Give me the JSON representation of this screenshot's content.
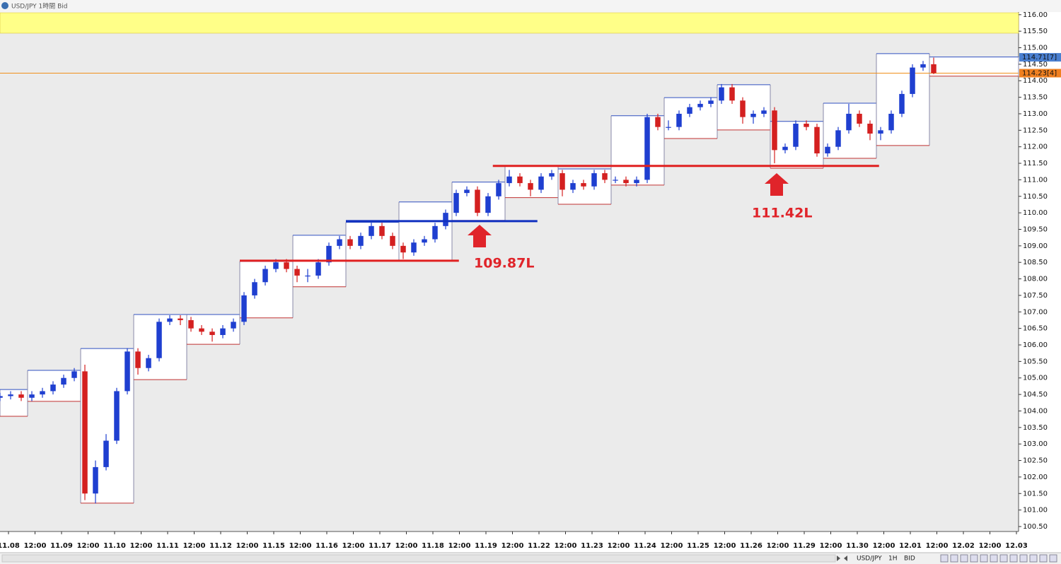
{
  "ui": {
    "title": "USD/JPY 1時間 Bid",
    "toolbar": [
      "USD/JPY",
      "1H",
      "BID"
    ]
  },
  "chart_data": {
    "type": "candlestick",
    "xlim": [
      -0.16,
      19.04
    ],
    "ylim": [
      100.35,
      116.06
    ],
    "xticks": [
      {
        "value": 0,
        "label": "11.08"
      },
      {
        "value": 0.5,
        "label": "12:00"
      },
      {
        "value": 1,
        "label": "11.09"
      },
      {
        "value": 1.5,
        "label": "12:00"
      },
      {
        "value": 2,
        "label": "11.10"
      },
      {
        "value": 2.5,
        "label": "12:00"
      },
      {
        "value": 3,
        "label": "11.11"
      },
      {
        "value": 3.5,
        "label": "12:00"
      },
      {
        "value": 4,
        "label": "11.12"
      },
      {
        "value": 4.5,
        "label": "12:00"
      },
      {
        "value": 5,
        "label": "11.15"
      },
      {
        "value": 5.5,
        "label": "12:00"
      },
      {
        "value": 6,
        "label": "11.16"
      },
      {
        "value": 6.5,
        "label": "12:00"
      },
      {
        "value": 7,
        "label": "11.17"
      },
      {
        "value": 7.5,
        "label": "12:00"
      },
      {
        "value": 8,
        "label": "11.18"
      },
      {
        "value": 8.5,
        "label": "12:00"
      },
      {
        "value": 9,
        "label": "11.19"
      },
      {
        "value": 9.5,
        "label": "12:00"
      },
      {
        "value": 10,
        "label": "11.22"
      },
      {
        "value": 10.5,
        "label": "12:00"
      },
      {
        "value": 11,
        "label": "11.23"
      },
      {
        "value": 11.5,
        "label": "12:00"
      },
      {
        "value": 12,
        "label": "11.24"
      },
      {
        "value": 12.5,
        "label": "12:00"
      },
      {
        "value": 13,
        "label": "11.25"
      },
      {
        "value": 13.5,
        "label": "12:00"
      },
      {
        "value": 14,
        "label": "11.26"
      },
      {
        "value": 14.5,
        "label": "12:00"
      },
      {
        "value": 15,
        "label": "11.29"
      },
      {
        "value": 15.5,
        "label": "12:00"
      },
      {
        "value": 16,
        "label": "11.30"
      },
      {
        "value": 16.5,
        "label": "12:00"
      },
      {
        "value": 17,
        "label": "12.01"
      },
      {
        "value": 17.5,
        "label": "12:00"
      },
      {
        "value": 18,
        "label": "12.02"
      },
      {
        "value": 18.5,
        "label": "12:00"
      },
      {
        "value": 19,
        "label": "12.03"
      }
    ],
    "yticks": [
      {
        "value": 100.5,
        "label": "100.50"
      },
      {
        "value": 101,
        "label": "101.00"
      },
      {
        "value": 101.5,
        "label": "101.50"
      },
      {
        "value": 102,
        "label": "102.00"
      },
      {
        "value": 102.5,
        "label": "102.50"
      },
      {
        "value": 103,
        "label": "103.00"
      },
      {
        "value": 103.5,
        "label": "103.50"
      },
      {
        "value": 104,
        "label": "104.00"
      },
      {
        "value": 104.5,
        "label": "104.50"
      },
      {
        "value": 105,
        "label": "105.00"
      },
      {
        "value": 105.5,
        "label": "105.50"
      },
      {
        "value": 106,
        "label": "106.00"
      },
      {
        "value": 106.5,
        "label": "106.50"
      },
      {
        "value": 107,
        "label": "107.00"
      },
      {
        "value": 107.5,
        "label": "107.50"
      },
      {
        "value": 108,
        "label": "108.00"
      },
      {
        "value": 108.5,
        "label": "108.50"
      },
      {
        "value": 109,
        "label": "109.00"
      },
      {
        "value": 109.5,
        "label": "109.50"
      },
      {
        "value": 110,
        "label": "110.00"
      },
      {
        "value": 110.5,
        "label": "110.50"
      },
      {
        "value": 111,
        "label": "111.00"
      },
      {
        "value": 111.5,
        "label": "111.50"
      },
      {
        "value": 112,
        "label": "112.00"
      },
      {
        "value": 112.5,
        "label": "112.50"
      },
      {
        "value": 113,
        "label": "113.00"
      },
      {
        "value": 113.5,
        "label": "113.50"
      },
      {
        "value": 114,
        "label": "114.00"
      },
      {
        "value": 114.5,
        "label": "114.50"
      },
      {
        "value": 115,
        "label": "115.00"
      },
      {
        "value": 115.5,
        "label": "115.50"
      },
      {
        "value": 116,
        "label": "116.00"
      }
    ],
    "up_color": "#1f3fd0",
    "down_color": "#d42020",
    "alert_band": {
      "from": 115.44,
      "to": 116.06,
      "color": "#ffff88"
    },
    "ranges": {
      "high_color": "#3050c0",
      "low_color": "#c03030",
      "start": [
        -0.16,
        0.36,
        1.36,
        2.36,
        3.36,
        4.36,
        5.36,
        6.36,
        7.36,
        8.36,
        9.36,
        10.36,
        11.36,
        12.36,
        13.36,
        14.36,
        15.36,
        16.36,
        17.36
      ],
      "end": [
        0.36,
        1.36,
        2.36,
        3.36,
        4.36,
        5.36,
        6.36,
        7.36,
        8.36,
        9.36,
        10.36,
        11.36,
        12.36,
        13.36,
        14.36,
        15.36,
        16.36,
        17.36,
        19.04
      ],
      "high": [
        104.65,
        105.23,
        105.89,
        106.92,
        106.92,
        108.53,
        109.32,
        109.71,
        110.33,
        110.93,
        111.42,
        111.33,
        112.94,
        113.49,
        113.88,
        112.77,
        113.32,
        114.82,
        114.72
      ],
      "low": [
        103.84,
        104.29,
        101.21,
        104.95,
        106.02,
        106.82,
        107.76,
        108.55,
        108.55,
        109.77,
        110.46,
        110.26,
        110.84,
        112.25,
        112.51,
        111.35,
        111.65,
        112.04,
        114.14
      ]
    },
    "levels": [
      {
        "value": 108.55,
        "from": 4.36,
        "to": 8.49,
        "color": "#e02020"
      },
      {
        "value": 109.75,
        "from": 6.36,
        "to": 9.97,
        "color": "#1030c0"
      },
      {
        "value": 111.42,
        "from": 9.13,
        "to": 16.41,
        "color": "#e02020"
      }
    ],
    "current_price": {
      "value": 114.23,
      "color": "#f0901a"
    },
    "price_tags": [
      {
        "value": 114.71,
        "label": "114.71[7]",
        "color": "#4a7fd0"
      },
      {
        "value": 114.23,
        "label": "114.23[4]",
        "color": "#f08020"
      }
    ],
    "annotations": [
      "109.87L",
      "111.42L"
    ],
    "candles": {
      "x": [
        -0.16,
        0.04,
        0.24,
        0.44,
        0.64,
        0.84,
        1.04,
        1.24,
        1.44,
        1.64,
        1.84,
        2.04,
        2.24,
        2.44,
        2.64,
        2.84,
        3.04,
        3.24,
        3.44,
        3.64,
        3.84,
        4.04,
        4.24,
        4.44,
        4.64,
        4.84,
        5.04,
        5.24,
        5.44,
        5.64,
        5.84,
        6.04,
        6.24,
        6.44,
        6.64,
        6.84,
        7.04,
        7.24,
        7.44,
        7.64,
        7.84,
        8.04,
        8.24,
        8.44,
        8.64,
        8.84,
        9.04,
        9.24,
        9.44,
        9.64,
        9.84,
        10.04,
        10.24,
        10.44,
        10.64,
        10.84,
        11.04,
        11.24,
        11.44,
        11.64,
        11.84,
        12.04,
        12.24,
        12.44,
        12.64,
        12.84,
        13.04,
        13.24,
        13.44,
        13.64,
        13.84,
        14.04,
        14.24,
        14.44,
        14.64,
        14.84,
        15.04,
        15.24,
        15.44,
        15.64,
        15.84,
        16.04,
        16.24,
        16.44,
        16.64,
        16.84,
        17.04,
        17.24,
        17.44
      ],
      "ohlc": [
        [
          104.4,
          104.55,
          104.3,
          104.45
        ],
        [
          104.45,
          104.6,
          104.35,
          104.5
        ],
        [
          104.5,
          104.6,
          104.3,
          104.4
        ],
        [
          104.4,
          104.6,
          104.3,
          104.5
        ],
        [
          104.5,
          104.7,
          104.4,
          104.6
        ],
        [
          104.6,
          104.9,
          104.5,
          104.8
        ],
        [
          104.8,
          105.1,
          104.7,
          105.0
        ],
        [
          105.0,
          105.3,
          104.9,
          105.2
        ],
        [
          105.2,
          105.4,
          101.3,
          101.5
        ],
        [
          101.5,
          102.5,
          101.2,
          102.3
        ],
        [
          102.3,
          103.3,
          102.2,
          103.1
        ],
        [
          103.1,
          104.7,
          103.0,
          104.6
        ],
        [
          104.6,
          105.9,
          104.5,
          105.8
        ],
        [
          105.8,
          105.9,
          105.1,
          105.3
        ],
        [
          105.3,
          105.7,
          105.2,
          105.6
        ],
        [
          105.6,
          106.8,
          105.5,
          106.7
        ],
        [
          106.7,
          106.9,
          106.6,
          106.8
        ],
        [
          106.8,
          106.9,
          106.6,
          106.75
        ],
        [
          106.75,
          106.85,
          106.4,
          106.5
        ],
        [
          106.5,
          106.6,
          106.3,
          106.4
        ],
        [
          106.4,
          106.5,
          106.1,
          106.3
        ],
        [
          106.3,
          106.6,
          106.2,
          106.5
        ],
        [
          106.5,
          106.8,
          106.4,
          106.7
        ],
        [
          106.7,
          107.6,
          106.6,
          107.5
        ],
        [
          107.5,
          108.0,
          107.4,
          107.9
        ],
        [
          107.9,
          108.4,
          107.8,
          108.3
        ],
        [
          108.3,
          108.6,
          108.2,
          108.5
        ],
        [
          108.5,
          108.6,
          108.2,
          108.3
        ],
        [
          108.3,
          108.4,
          107.9,
          108.1
        ],
        [
          108.1,
          108.3,
          107.9,
          108.1
        ],
        [
          108.1,
          108.6,
          108.0,
          108.5
        ],
        [
          108.5,
          109.1,
          108.4,
          109.0
        ],
        [
          109.0,
          109.3,
          108.9,
          109.2
        ],
        [
          109.2,
          109.3,
          108.9,
          109.0
        ],
        [
          109.0,
          109.4,
          108.9,
          109.3
        ],
        [
          109.3,
          109.7,
          109.2,
          109.6
        ],
        [
          109.6,
          109.7,
          109.2,
          109.3
        ],
        [
          109.3,
          109.4,
          108.9,
          109.0
        ],
        [
          109.0,
          109.1,
          108.6,
          108.8
        ],
        [
          108.8,
          109.2,
          108.7,
          109.1
        ],
        [
          109.1,
          109.3,
          109.0,
          109.2
        ],
        [
          109.2,
          109.7,
          109.1,
          109.6
        ],
        [
          109.6,
          110.1,
          109.5,
          110.0
        ],
        [
          110.0,
          110.7,
          109.9,
          110.6
        ],
        [
          110.6,
          110.8,
          110.5,
          110.7
        ],
        [
          110.7,
          110.8,
          109.9,
          110.0
        ],
        [
          110.0,
          110.6,
          109.9,
          110.5
        ],
        [
          110.5,
          111.0,
          110.4,
          110.9
        ],
        [
          110.9,
          111.3,
          110.8,
          111.1
        ],
        [
          111.1,
          111.2,
          110.8,
          110.9
        ],
        [
          110.9,
          111.0,
          110.5,
          110.7
        ],
        [
          110.7,
          111.2,
          110.6,
          111.1
        ],
        [
          111.1,
          111.3,
          111.0,
          111.2
        ],
        [
          111.2,
          111.3,
          110.5,
          110.7
        ],
        [
          110.7,
          111.0,
          110.6,
          110.9
        ],
        [
          110.9,
          111.0,
          110.7,
          110.8
        ],
        [
          110.8,
          111.3,
          110.7,
          111.2
        ],
        [
          111.2,
          111.3,
          110.9,
          111.0
        ],
        [
          111.0,
          111.1,
          110.9,
          111.0
        ],
        [
          111.0,
          111.1,
          110.8,
          110.9
        ],
        [
          110.9,
          111.1,
          110.8,
          111.0
        ],
        [
          111.0,
          113.0,
          110.9,
          112.9
        ],
        [
          112.9,
          113.0,
          112.5,
          112.6
        ],
        [
          112.6,
          112.8,
          112.5,
          112.6
        ],
        [
          112.6,
          113.1,
          112.5,
          113.0
        ],
        [
          113.0,
          113.3,
          112.9,
          113.2
        ],
        [
          113.2,
          113.4,
          113.1,
          113.3
        ],
        [
          113.3,
          113.5,
          113.2,
          113.4
        ],
        [
          113.4,
          113.9,
          113.3,
          113.8
        ],
        [
          113.8,
          113.9,
          113.3,
          113.4
        ],
        [
          113.4,
          113.5,
          112.7,
          112.9
        ],
        [
          112.9,
          113.1,
          112.7,
          113.0
        ],
        [
          113.0,
          113.2,
          112.9,
          113.1
        ],
        [
          113.1,
          113.2,
          111.5,
          111.9
        ],
        [
          111.9,
          112.1,
          111.8,
          112.0
        ],
        [
          112.0,
          112.8,
          111.9,
          112.7
        ],
        [
          112.7,
          112.8,
          112.5,
          112.6
        ],
        [
          112.6,
          112.7,
          111.7,
          111.8
        ],
        [
          111.8,
          112.1,
          111.7,
          112.0
        ],
        [
          112.0,
          112.6,
          111.9,
          112.5
        ],
        [
          112.5,
          113.3,
          112.4,
          113.0
        ],
        [
          113.0,
          113.1,
          112.6,
          112.7
        ],
        [
          112.7,
          112.8,
          112.2,
          112.4
        ],
        [
          112.4,
          112.6,
          112.2,
          112.5
        ],
        [
          112.5,
          113.1,
          112.4,
          113.0
        ],
        [
          113.0,
          113.7,
          112.9,
          113.6
        ],
        [
          113.6,
          114.5,
          113.5,
          114.4
        ],
        [
          114.4,
          114.6,
          114.3,
          114.5
        ],
        [
          114.5,
          114.7,
          114.2,
          114.23
        ]
      ]
    }
  }
}
